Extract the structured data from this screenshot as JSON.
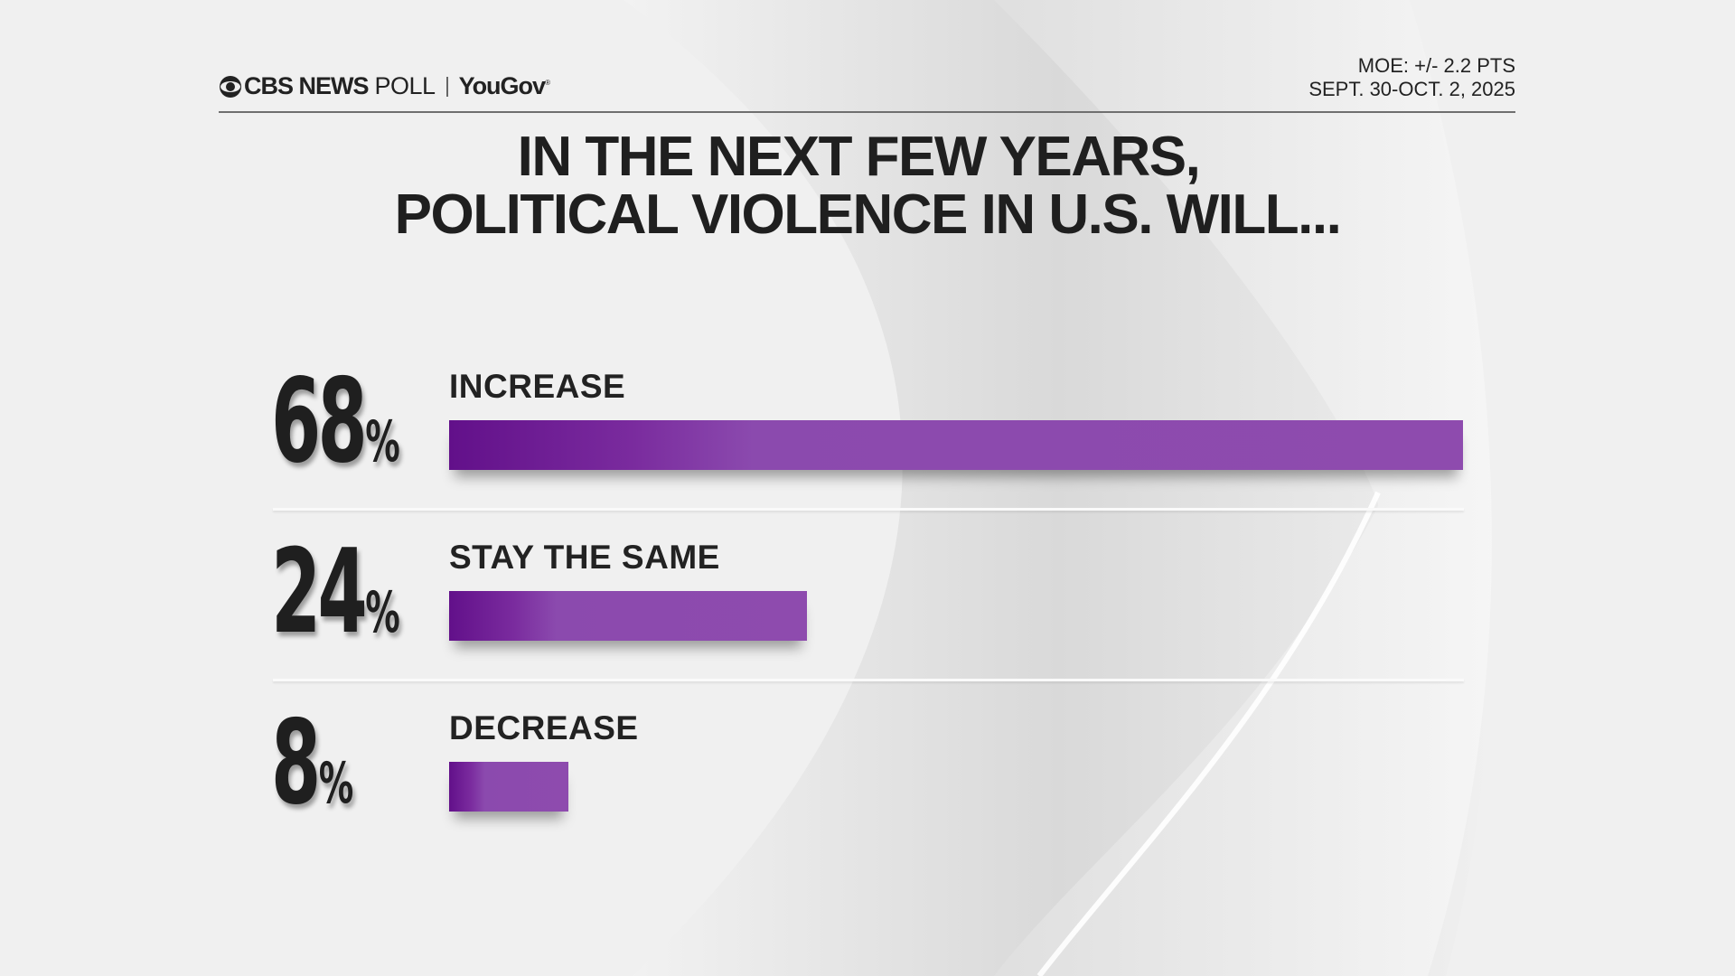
{
  "header": {
    "brand_cbs": "CBS NEWS",
    "brand_poll": "POLL",
    "brand_partner": "YouGov",
    "moe": "MOE: +/- 2.2 PTS",
    "dates": "SEPT. 30-OCT. 2, 2025"
  },
  "colors": {
    "bar_dark": "#62108a",
    "bar_light": "#8e4bae",
    "text": "#222222",
    "background": "#efefef"
  },
  "chart_data": {
    "type": "bar",
    "orientation": "horizontal",
    "title": "IN THE NEXT FEW YEARS, POLITICAL VIOLENCE IN U.S. WILL...",
    "title_lines": [
      "IN THE NEXT FEW YEARS,",
      "POLITICAL VIOLENCE IN U.S. WILL..."
    ],
    "categories": [
      "INCREASE",
      "STAY THE SAME",
      "DECREASE"
    ],
    "values": [
      68,
      24,
      8
    ],
    "value_labels": [
      "68",
      "24",
      "8"
    ],
    "unit": "%",
    "xlim": [
      0,
      68
    ],
    "grid": false,
    "legend": "none"
  }
}
